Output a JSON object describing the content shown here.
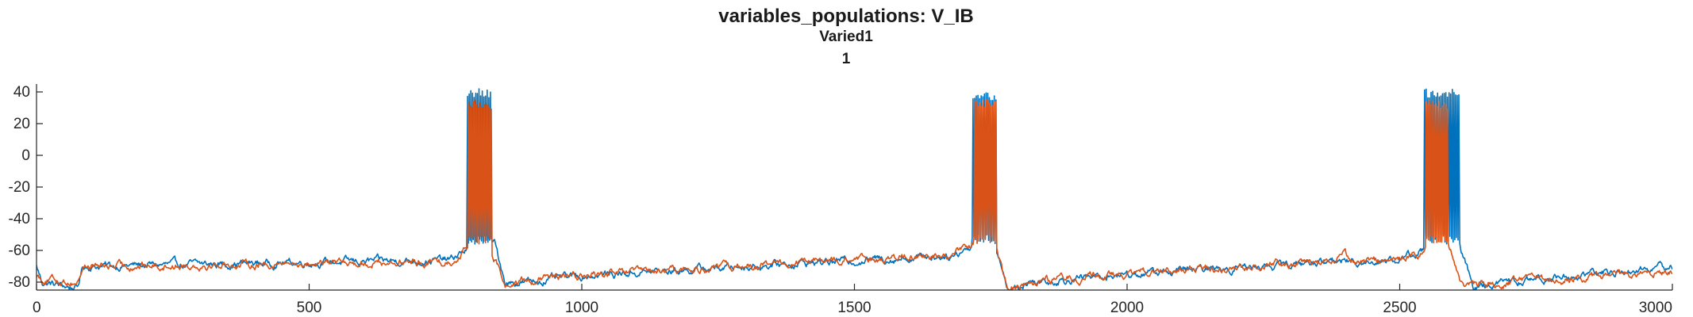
{
  "chart_data": {
    "type": "line",
    "title": "variables_populations: V_IB",
    "subtitle": "Varied1",
    "subtitle2": "1",
    "xlim": [
      0,
      3000
    ],
    "ylim": [
      -85,
      45
    ],
    "xticks": [
      0,
      500,
      1000,
      1500,
      2000,
      2500,
      3000
    ],
    "xtick_labels": [
      "0",
      "500",
      "1000",
      "1500",
      "2000",
      "2500",
      "3000"
    ],
    "yticks": [
      40,
      20,
      0,
      -20,
      -40,
      -60,
      -80
    ],
    "ytick_labels": [
      "40",
      "20",
      "0",
      "-20",
      "-40",
      "-60",
      "-80"
    ],
    "grid": false,
    "legend": "none",
    "series": [
      {
        "color": "#0072BD",
        "baseline": [
          [
            0,
            -70
          ],
          [
            10,
            -80
          ],
          [
            75,
            -84
          ],
          [
            85,
            -70
          ],
          [
            760,
            -66
          ],
          [
            785,
            -60
          ],
          [
            815,
            -55
          ],
          [
            840,
            -56
          ],
          [
            860,
            -80
          ],
          [
            900,
            -80
          ],
          [
            1000,
            -76
          ],
          [
            1400,
            -68
          ],
          [
            1680,
            -63
          ],
          [
            1710,
            -58
          ],
          [
            1740,
            -55
          ],
          [
            1760,
            -57
          ],
          [
            1780,
            -85
          ],
          [
            1820,
            -80
          ],
          [
            2000,
            -75
          ],
          [
            2380,
            -67
          ],
          [
            2500,
            -66
          ],
          [
            2540,
            -60
          ],
          [
            2570,
            -55
          ],
          [
            2610,
            -57
          ],
          [
            2635,
            -83
          ],
          [
            2700,
            -80
          ],
          [
            3000,
            -70
          ]
        ],
        "bursts": [
          [
            790,
            835,
            42
          ],
          [
            1715,
            1760,
            40
          ],
          [
            2545,
            2610,
            42
          ]
        ]
      },
      {
        "color": "#D95319",
        "baseline": [
          [
            0,
            -75
          ],
          [
            10,
            -78
          ],
          [
            75,
            -80
          ],
          [
            85,
            -70
          ],
          [
            760,
            -67
          ],
          [
            785,
            -60
          ],
          [
            815,
            -55
          ],
          [
            830,
            -56
          ],
          [
            860,
            -82
          ],
          [
            900,
            -79
          ],
          [
            1000,
            -76
          ],
          [
            1400,
            -68
          ],
          [
            1680,
            -63
          ],
          [
            1710,
            -56
          ],
          [
            1740,
            -55
          ],
          [
            1760,
            -57
          ],
          [
            1780,
            -85
          ],
          [
            1820,
            -79
          ],
          [
            2000,
            -75
          ],
          [
            2380,
            -66
          ],
          [
            2395,
            -58
          ],
          [
            2410,
            -67
          ],
          [
            2500,
            -66
          ],
          [
            2540,
            -60
          ],
          [
            2565,
            -54
          ],
          [
            2590,
            -56
          ],
          [
            2615,
            -82
          ],
          [
            2700,
            -80
          ],
          [
            3000,
            -73
          ]
        ],
        "bursts": [
          [
            792,
            835,
            35
          ],
          [
            1718,
            1760,
            36
          ],
          [
            2548,
            2590,
            35
          ]
        ]
      }
    ]
  }
}
